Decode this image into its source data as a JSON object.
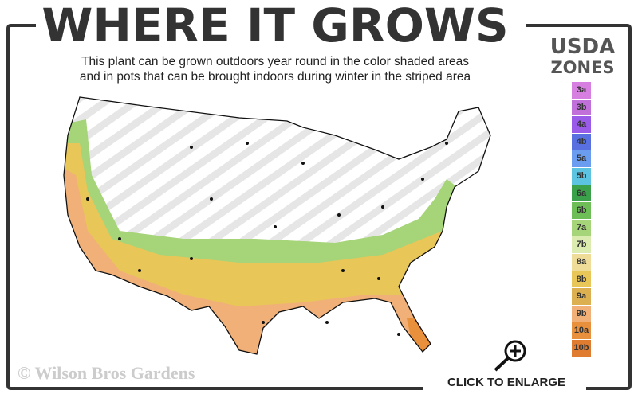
{
  "title": "WHERE IT GROWS",
  "subtitle": [
    "This plant can be grown outdoors year round in the color shaded areas",
    "and in pots that can be brought indoors during winter in the striped area"
  ],
  "legend": {
    "title_line1": "USDA",
    "title_line2": "ZONES",
    "zones": [
      {
        "label": "3a",
        "color": "#d67fe0"
      },
      {
        "label": "3b",
        "color": "#c070d8"
      },
      {
        "label": "4a",
        "color": "#9a5ce8"
      },
      {
        "label": "4b",
        "color": "#5870e0"
      },
      {
        "label": "5a",
        "color": "#6a9cf0"
      },
      {
        "label": "5b",
        "color": "#5cc4e0"
      },
      {
        "label": "6a",
        "color": "#3aa04a"
      },
      {
        "label": "6b",
        "color": "#6ebe58"
      },
      {
        "label": "7a",
        "color": "#a6d478"
      },
      {
        "label": "7b",
        "color": "#dcecb0"
      },
      {
        "label": "8a",
        "color": "#eedc98"
      },
      {
        "label": "8b",
        "color": "#e8c658"
      },
      {
        "label": "9a",
        "color": "#dcb050"
      },
      {
        "label": "9b",
        "color": "#f0b078"
      },
      {
        "label": "10a",
        "color": "#e8903c"
      },
      {
        "label": "10b",
        "color": "#e07c30"
      }
    ]
  },
  "watermark": "© Wilson Bros Gardens",
  "enlarge_label": "CLICK TO ENLARGE",
  "icons": {
    "enlarge": "magnifier-plus-icon"
  }
}
